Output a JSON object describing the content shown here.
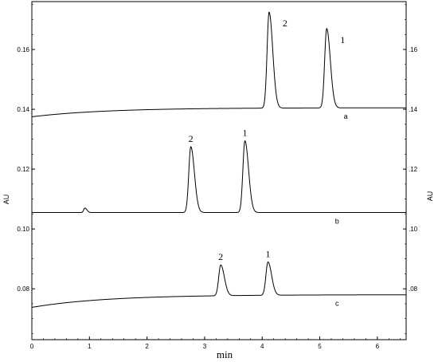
{
  "chart_data": {
    "type": "line",
    "title": "",
    "xlabel": "min",
    "ylabel": "AU",
    "xlim": [
      0,
      6.5
    ],
    "ylim": [
      0.063,
      0.176
    ],
    "grid": false,
    "x_ticks": [
      0,
      1,
      2,
      3,
      4,
      5,
      6
    ],
    "y_ticks": [
      0.08,
      0.1,
      0.12,
      0.14,
      0.16
    ],
    "series": [
      {
        "name": "a",
        "baseline_start": 0.1375,
        "baseline_end": 0.1405,
        "peaks": [
          {
            "label": "2",
            "x": 4.12,
            "height": 0.1725
          },
          {
            "label": "1",
            "x": 5.12,
            "height": 0.167
          }
        ],
        "trace_label_x": 5.45
      },
      {
        "name": "b",
        "baseline_start": 0.1055,
        "baseline_end": 0.1055,
        "peaks": [
          {
            "label": "2",
            "x": 2.76,
            "height": 0.1275
          },
          {
            "label": "1",
            "x": 3.7,
            "height": 0.1295
          },
          {
            "label": "",
            "x": 0.92,
            "height": 0.107
          }
        ],
        "trace_label_x": 5.3
      },
      {
        "name": "c",
        "baseline_start": 0.0738,
        "baseline_end": 0.078,
        "peaks": [
          {
            "label": "2",
            "x": 3.28,
            "height": 0.088
          },
          {
            "label": "1",
            "x": 4.1,
            "height": 0.089
          }
        ],
        "trace_label_x": 5.3
      }
    ]
  }
}
